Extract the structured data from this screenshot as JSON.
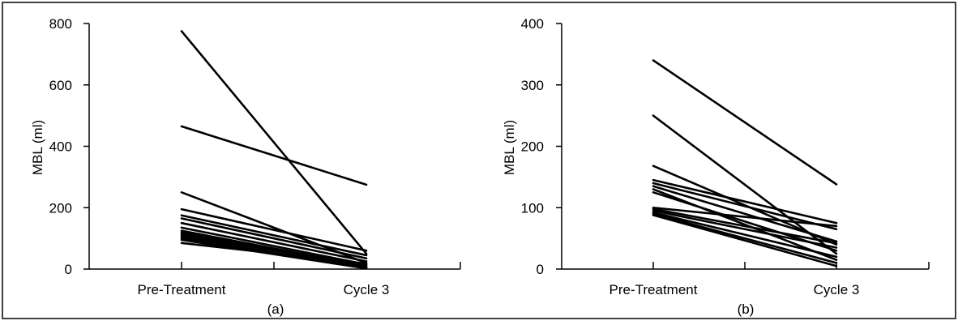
{
  "chart_data": [
    {
      "type": "line",
      "panel_label": "(a)",
      "ylabel": "MBL (ml)",
      "categories": [
        "Pre-Treatment",
        "Cycle 3"
      ],
      "ylim": [
        0,
        800
      ],
      "yticks": [
        "0",
        "200",
        "400",
        "600",
        "800"
      ],
      "grid": false,
      "legend": "none",
      "series": [
        {
          "values": [
            775,
            50
          ]
        },
        {
          "values": [
            465,
            275
          ]
        },
        {
          "values": [
            250,
            20
          ]
        },
        {
          "values": [
            195,
            60
          ]
        },
        {
          "values": [
            175,
            45
          ]
        },
        {
          "values": [
            165,
            35
          ]
        },
        {
          "values": [
            150,
            25
          ]
        },
        {
          "values": [
            135,
            15
          ]
        },
        {
          "values": [
            125,
            10
          ]
        },
        {
          "values": [
            120,
            5
          ]
        },
        {
          "values": [
            115,
            8
          ]
        },
        {
          "values": [
            110,
            12
          ]
        },
        {
          "values": [
            105,
            3
          ]
        },
        {
          "values": [
            100,
            6
          ]
        },
        {
          "values": [
            95,
            2
          ]
        },
        {
          "values": [
            85,
            18
          ]
        }
      ]
    },
    {
      "type": "line",
      "panel_label": "(b)",
      "ylabel": "MBL (ml)",
      "categories": [
        "Pre-Treatment",
        "Cycle 3"
      ],
      "ylim": [
        0,
        400
      ],
      "yticks": [
        "0",
        "100",
        "200",
        "300",
        "400"
      ],
      "grid": false,
      "legend": "none",
      "series": [
        {
          "values": [
            340,
            138
          ]
        },
        {
          "values": [
            250,
            25
          ]
        },
        {
          "values": [
            168,
            40
          ]
        },
        {
          "values": [
            145,
            75
          ]
        },
        {
          "values": [
            140,
            65
          ]
        },
        {
          "values": [
            135,
            45
          ]
        },
        {
          "values": [
            130,
            15
          ]
        },
        {
          "values": [
            125,
            30
          ]
        },
        {
          "values": [
            100,
            70
          ]
        },
        {
          "values": [
            98,
            42
          ]
        },
        {
          "values": [
            95,
            35
          ]
        },
        {
          "values": [
            92,
            20
          ]
        },
        {
          "values": [
            90,
            10
          ]
        },
        {
          "values": [
            88,
            5
          ]
        }
      ]
    }
  ]
}
